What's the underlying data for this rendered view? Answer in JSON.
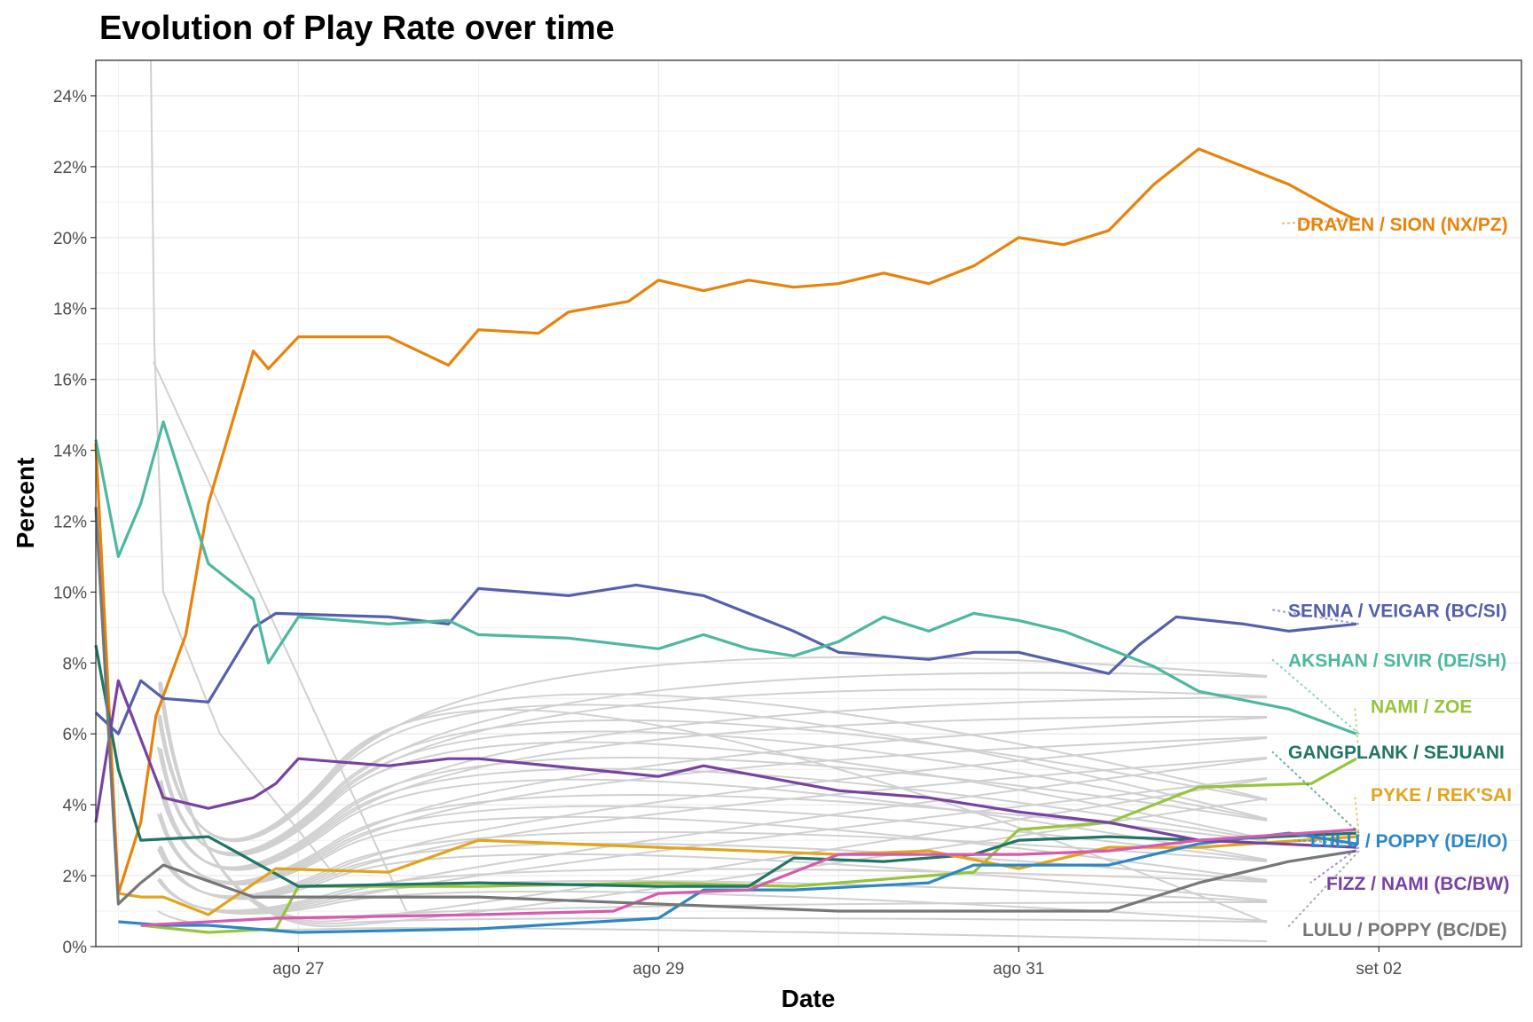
{
  "chart_data": {
    "type": "line",
    "title": "Evolution of Play Rate over time",
    "xlabel": "Date",
    "ylabel": "Percent",
    "x_ticks": [
      "ago 27",
      "ago 29",
      "ago 31",
      "set 02"
    ],
    "x_range": [
      "2021-08-25T21:00",
      "2021-09-02T19:00"
    ],
    "y_ticks": [
      "0%",
      "2%",
      "4%",
      "6%",
      "8%",
      "10%",
      "12%",
      "14%",
      "16%",
      "18%",
      "20%",
      "22%",
      "24%"
    ],
    "ylim": [
      0,
      25
    ],
    "grid": true,
    "legend": "direct labels at right end of lines",
    "series": [
      {
        "name": "DRAVEN / SION (NX/PZ)",
        "color": "#E7830A",
        "points": [
          [
            "2021-08-25T21:00",
            14.2
          ],
          [
            "2021-08-26T00:00",
            1.5
          ],
          [
            "2021-08-26T03:00",
            3.5
          ],
          [
            "2021-08-26T05:00",
            6.5
          ],
          [
            "2021-08-26T09:00",
            8.8
          ],
          [
            "2021-08-26T12:00",
            12.5
          ],
          [
            "2021-08-26T18:00",
            16.8
          ],
          [
            "2021-08-26T20:00",
            16.3
          ],
          [
            "2021-08-27T00:00",
            17.2
          ],
          [
            "2021-08-27T12:00",
            17.2
          ],
          [
            "2021-08-27T20:00",
            16.4
          ],
          [
            "2021-08-28T00:00",
            17.4
          ],
          [
            "2021-08-28T08:00",
            17.3
          ],
          [
            "2021-08-28T12:00",
            17.9
          ],
          [
            "2021-08-28T20:00",
            18.2
          ],
          [
            "2021-08-29T00:00",
            18.8
          ],
          [
            "2021-08-29T06:00",
            18.5
          ],
          [
            "2021-08-29T12:00",
            18.8
          ],
          [
            "2021-08-29T18:00",
            18.6
          ],
          [
            "2021-08-30T00:00",
            18.7
          ],
          [
            "2021-08-30T06:00",
            19.0
          ],
          [
            "2021-08-30T12:00",
            18.7
          ],
          [
            "2021-08-30T18:00",
            19.2
          ],
          [
            "2021-08-31T00:00",
            20.0
          ],
          [
            "2021-08-31T06:00",
            19.8
          ],
          [
            "2021-08-31T12:00",
            20.2
          ],
          [
            "2021-08-31T18:00",
            21.5
          ],
          [
            "2021-09-01T00:00",
            22.5
          ],
          [
            "2021-09-01T06:00",
            22.0
          ],
          [
            "2021-09-01T12:00",
            21.5
          ],
          [
            "2021-09-01T18:00",
            20.8
          ],
          [
            "2021-09-01T21:00",
            20.5
          ]
        ]
      },
      {
        "name": "SENNA / VEIGAR (BC/SI)",
        "color": "#5560AC",
        "points": [
          [
            "2021-08-25T21:00",
            6.6
          ],
          [
            "2021-08-26T00:00",
            6.0
          ],
          [
            "2021-08-26T03:00",
            7.5
          ],
          [
            "2021-08-26T06:00",
            7.0
          ],
          [
            "2021-08-26T12:00",
            6.9
          ],
          [
            "2021-08-26T18:00",
            9.0
          ],
          [
            "2021-08-26T21:00",
            9.4
          ],
          [
            "2021-08-27T12:00",
            9.3
          ],
          [
            "2021-08-27T20:00",
            9.1
          ],
          [
            "2021-08-28T00:00",
            10.1
          ],
          [
            "2021-08-28T12:00",
            9.9
          ],
          [
            "2021-08-28T21:00",
            10.2
          ],
          [
            "2021-08-29T06:00",
            9.9
          ],
          [
            "2021-08-29T12:00",
            9.4
          ],
          [
            "2021-08-29T18:00",
            8.9
          ],
          [
            "2021-08-30T00:00",
            8.3
          ],
          [
            "2021-08-30T12:00",
            8.1
          ],
          [
            "2021-08-30T18:00",
            8.3
          ],
          [
            "2021-08-31T00:00",
            8.3
          ],
          [
            "2021-08-31T06:00",
            8.0
          ],
          [
            "2021-08-31T12:00",
            7.7
          ],
          [
            "2021-08-31T16:00",
            8.5
          ],
          [
            "2021-08-31T21:00",
            9.3
          ],
          [
            "2021-09-01T06:00",
            9.1
          ],
          [
            "2021-09-01T12:00",
            8.9
          ],
          [
            "2021-09-01T21:00",
            9.1
          ]
        ]
      },
      {
        "name": "AKSHAN / SIVIR (DE/SH)",
        "color": "#4DB79F",
        "points": [
          [
            "2021-08-25T21:00",
            14.3
          ],
          [
            "2021-08-26T00:00",
            11.0
          ],
          [
            "2021-08-26T03:00",
            12.5
          ],
          [
            "2021-08-26T06:00",
            14.8
          ],
          [
            "2021-08-26T12:00",
            10.8
          ],
          [
            "2021-08-26T18:00",
            9.8
          ],
          [
            "2021-08-26T20:00",
            8.0
          ],
          [
            "2021-08-27T00:00",
            9.3
          ],
          [
            "2021-08-27T12:00",
            9.1
          ],
          [
            "2021-08-27T20:00",
            9.2
          ],
          [
            "2021-08-28T00:00",
            8.8
          ],
          [
            "2021-08-28T12:00",
            8.7
          ],
          [
            "2021-08-29T00:00",
            8.4
          ],
          [
            "2021-08-29T06:00",
            8.8
          ],
          [
            "2021-08-29T12:00",
            8.4
          ],
          [
            "2021-08-29T18:00",
            8.2
          ],
          [
            "2021-08-30T00:00",
            8.6
          ],
          [
            "2021-08-30T06:00",
            9.3
          ],
          [
            "2021-08-30T12:00",
            8.9
          ],
          [
            "2021-08-30T18:00",
            9.4
          ],
          [
            "2021-08-31T00:00",
            9.2
          ],
          [
            "2021-08-31T06:00",
            8.9
          ],
          [
            "2021-08-31T12:00",
            8.4
          ],
          [
            "2021-08-31T18:00",
            7.9
          ],
          [
            "2021-09-01T00:00",
            7.2
          ],
          [
            "2021-09-01T12:00",
            6.7
          ],
          [
            "2021-09-01T21:00",
            6.0
          ]
        ]
      },
      {
        "name": "NAMI / ZOE",
        "color": "#96C43B",
        "points": [
          [
            "2021-08-26T03:00",
            0.6
          ],
          [
            "2021-08-26T12:00",
            0.4
          ],
          [
            "2021-08-26T21:00",
            0.5
          ],
          [
            "2021-08-27T00:00",
            1.7
          ],
          [
            "2021-08-28T00:00",
            1.7
          ],
          [
            "2021-08-29T00:00",
            1.8
          ],
          [
            "2021-08-29T18:00",
            1.7
          ],
          [
            "2021-08-30T06:00",
            1.9
          ],
          [
            "2021-08-30T18:00",
            2.1
          ],
          [
            "2021-08-31T00:00",
            3.3
          ],
          [
            "2021-08-31T12:00",
            3.5
          ],
          [
            "2021-09-01T00:00",
            4.5
          ],
          [
            "2021-09-01T15:00",
            4.6
          ],
          [
            "2021-09-01T21:00",
            5.3
          ]
        ]
      },
      {
        "name": "GANGPLANK / SEJUANI",
        "color": "#1F7566",
        "points": [
          [
            "2021-08-25T21:00",
            8.5
          ],
          [
            "2021-08-26T00:00",
            5.0
          ],
          [
            "2021-08-26T03:00",
            3.0
          ],
          [
            "2021-08-26T12:00",
            3.1
          ],
          [
            "2021-08-27T00:00",
            1.7
          ],
          [
            "2021-08-28T00:00",
            1.8
          ],
          [
            "2021-08-29T00:00",
            1.7
          ],
          [
            "2021-08-29T12:00",
            1.7
          ],
          [
            "2021-08-29T18:00",
            2.5
          ],
          [
            "2021-08-30T06:00",
            2.4
          ],
          [
            "2021-08-30T18:00",
            2.6
          ],
          [
            "2021-08-31T00:00",
            3.0
          ],
          [
            "2021-08-31T12:00",
            3.1
          ],
          [
            "2021-09-01T00:00",
            3.0
          ],
          [
            "2021-09-01T21:00",
            3.2
          ]
        ]
      },
      {
        "name": "PYKE / REK'SAI",
        "color": "#E1A41E",
        "points": [
          [
            "2021-08-26T00:00",
            1.5
          ],
          [
            "2021-08-26T03:00",
            1.4
          ],
          [
            "2021-08-26T06:00",
            1.4
          ],
          [
            "2021-08-26T12:00",
            0.9
          ],
          [
            "2021-08-26T21:00",
            2.2
          ],
          [
            "2021-08-27T12:00",
            2.1
          ],
          [
            "2021-08-28T00:00",
            3.0
          ],
          [
            "2021-08-29T00:00",
            2.8
          ],
          [
            "2021-08-30T00:00",
            2.6
          ],
          [
            "2021-08-30T12:00",
            2.7
          ],
          [
            "2021-08-31T00:00",
            2.2
          ],
          [
            "2021-08-31T12:00",
            2.8
          ],
          [
            "2021-09-01T00:00",
            2.8
          ],
          [
            "2021-09-01T21:00",
            3.1
          ]
        ]
      },
      {
        "name": "LULU / POPPY (DE/IO)",
        "color": "#2C87C6",
        "points": [
          [
            "2021-08-26T00:00",
            0.7
          ],
          [
            "2021-08-26T06:00",
            0.6
          ],
          [
            "2021-08-26T12:00",
            0.6
          ],
          [
            "2021-08-27T00:00",
            0.4
          ],
          [
            "2021-08-28T00:00",
            0.5
          ],
          [
            "2021-08-29T00:00",
            0.8
          ],
          [
            "2021-08-29T06:00",
            1.6
          ],
          [
            "2021-08-29T18:00",
            1.6
          ],
          [
            "2021-08-30T12:00",
            1.8
          ],
          [
            "2021-08-30T18:00",
            2.3
          ],
          [
            "2021-08-31T00:00",
            2.3
          ],
          [
            "2021-08-31T12:00",
            2.3
          ],
          [
            "2021-09-01T00:00",
            2.9
          ],
          [
            "2021-09-01T12:00",
            3.2
          ],
          [
            "2021-09-01T21:00",
            2.9
          ]
        ]
      },
      {
        "name": "FIZZ / NAMI (BC/BW)",
        "color": "#7742A1",
        "points": [
          [
            "2021-08-25T21:00",
            3.5
          ],
          [
            "2021-08-26T00:00",
            7.5
          ],
          [
            "2021-08-26T06:00",
            4.2
          ],
          [
            "2021-08-26T12:00",
            3.9
          ],
          [
            "2021-08-26T18:00",
            4.2
          ],
          [
            "2021-08-26T21:00",
            4.6
          ],
          [
            "2021-08-27T00:00",
            5.3
          ],
          [
            "2021-08-27T12:00",
            5.1
          ],
          [
            "2021-08-27T20:00",
            5.3
          ],
          [
            "2021-08-28T00:00",
            5.3
          ],
          [
            "2021-08-29T00:00",
            4.8
          ],
          [
            "2021-08-29T06:00",
            5.1
          ],
          [
            "2021-08-30T00:00",
            4.4
          ],
          [
            "2021-08-30T12:00",
            4.2
          ],
          [
            "2021-08-31T00:00",
            3.8
          ],
          [
            "2021-08-31T12:00",
            3.5
          ],
          [
            "2021-09-01T00:00",
            3.0
          ],
          [
            "2021-09-01T21:00",
            2.8
          ]
        ]
      },
      {
        "name": "",
        "color": "#D65AAE",
        "points": [
          [
            "2021-08-26T03:00",
            0.6
          ],
          [
            "2021-08-26T21:00",
            0.8
          ],
          [
            "2021-08-28T00:00",
            0.9
          ],
          [
            "2021-08-28T18:00",
            1.0
          ],
          [
            "2021-08-29T00:00",
            1.5
          ],
          [
            "2021-08-29T12:00",
            1.6
          ],
          [
            "2021-08-30T00:00",
            2.6
          ],
          [
            "2021-08-30T12:00",
            2.6
          ],
          [
            "2021-08-31T00:00",
            2.6
          ],
          [
            "2021-08-31T12:00",
            2.7
          ],
          [
            "2021-09-01T00:00",
            3.0
          ],
          [
            "2021-09-01T21:00",
            3.3
          ]
        ]
      },
      {
        "name": "LULU / POPPY (BC/DE)",
        "color": "#777777",
        "points": [
          [
            "2021-08-25T21:00",
            12.4
          ],
          [
            "2021-08-26T00:00",
            1.2
          ],
          [
            "2021-08-26T03:00",
            1.8
          ],
          [
            "2021-08-26T06:00",
            2.3
          ],
          [
            "2021-08-26T18:00",
            1.4
          ],
          [
            "2021-08-27T00:00",
            1.4
          ],
          [
            "2021-08-28T00:00",
            1.4
          ],
          [
            "2021-08-29T00:00",
            1.2
          ],
          [
            "2021-08-30T00:00",
            1.0
          ],
          [
            "2021-08-31T00:00",
            1.0
          ],
          [
            "2021-08-31T12:00",
            1.0
          ],
          [
            "2021-09-01T00:00",
            1.8
          ],
          [
            "2021-09-01T12:00",
            2.4
          ],
          [
            "2021-09-01T21:00",
            2.7
          ]
        ]
      }
    ]
  }
}
